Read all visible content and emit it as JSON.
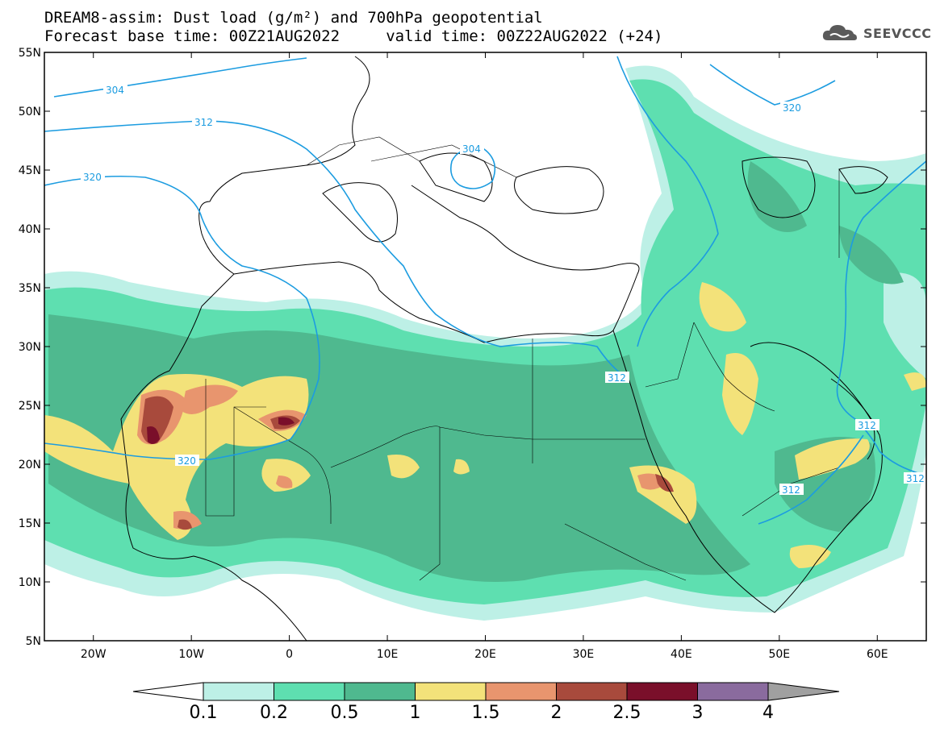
{
  "header": {
    "line1": "DREAM8-assim: Dust load (g/m²) and 700hPa geopotential",
    "line2": "Forecast base time: 00Z21AUG2022     valid time: 00Z22AUG2022 (+24)"
  },
  "logo": {
    "text": "SEEVCCC",
    "icon": "cloud-logo-icon"
  },
  "map": {
    "lon_range": [
      -25,
      65
    ],
    "lat_range": [
      5,
      55
    ],
    "lon_ticks": [
      "20W",
      "10W",
      "0",
      "10E",
      "20E",
      "30E",
      "40E",
      "50E",
      "60E"
    ],
    "lat_ticks": [
      "55N",
      "50N",
      "45N",
      "40N",
      "35N",
      "30N",
      "25N",
      "20N",
      "15N",
      "10N",
      "5N"
    ],
    "contour_labels": [
      "304",
      "312",
      "320",
      "304",
      "320",
      "320",
      "312",
      "312",
      "312",
      "312"
    ]
  },
  "colorbar": {
    "labels": [
      "0.1",
      "0.2",
      "0.5",
      "1",
      "1.5",
      "2",
      "2.5",
      "3",
      "4"
    ],
    "colors": [
      "#bdf0e6",
      "#5edfb0",
      "#4fb98f",
      "#f3e27a",
      "#e8956e",
      "#a84a3c",
      "#7a0f2a",
      "#8a6b9e"
    ],
    "under_color": "#ffffff",
    "over_color": "#a0a0a0"
  }
}
